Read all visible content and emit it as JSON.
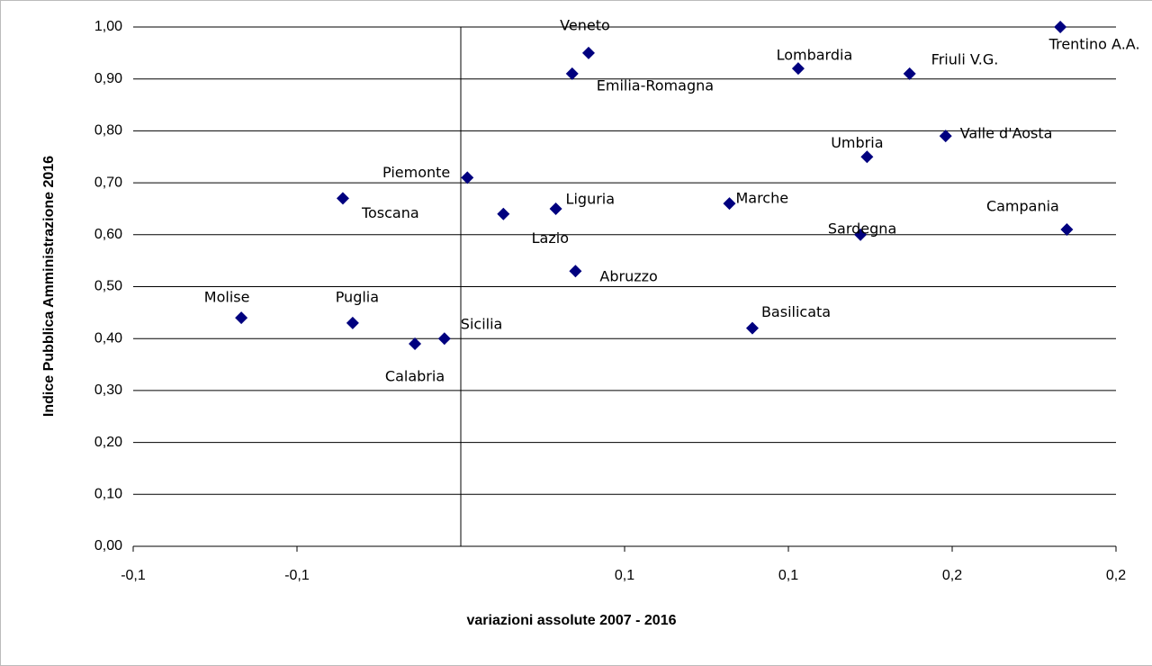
{
  "chart_data": {
    "type": "scatter",
    "xlabel": "variazioni assolute 2007 - 2016",
    "ylabel": "Indice Pubblica Amministrazione 2016",
    "labels": [
      "Molise",
      "Toscana",
      "Puglia",
      "Calabria",
      "Sicilia",
      "Piemonte",
      "Lazio",
      "Liguria",
      "Abruzzo",
      "Emilia-Romagna",
      "Veneto",
      "Marche",
      "Basilicata",
      "Lombardia",
      "Sardegna",
      "Umbria",
      "Friuli V.G.",
      "Valle d'Aosta",
      "Trentino A.A.",
      "Campania"
    ],
    "x": [
      -0.067,
      -0.036,
      -0.033,
      -0.014,
      -0.005,
      0.002,
      0.013,
      0.029,
      0.035,
      0.034,
      0.039,
      0.082,
      0.089,
      0.103,
      0.122,
      0.124,
      0.137,
      0.148,
      0.183,
      0.185
    ],
    "values": [
      0.44,
      0.67,
      0.43,
      0.39,
      0.4,
      0.71,
      0.64,
      0.65,
      0.53,
      0.91,
      0.95,
      0.66,
      0.42,
      0.92,
      0.6,
      0.75,
      0.91,
      0.79,
      1.0,
      0.61
    ],
    "color": "#00007f",
    "xlim": [
      -0.1,
      0.2
    ],
    "ylim": [
      0,
      1
    ],
    "y_axis_at": 0,
    "grid": true,
    "xticks": [
      {
        "value": -0.1,
        "label": "-0,1"
      },
      {
        "value": -0.05,
        "label": "-0,1"
      },
      {
        "value": 0.05,
        "label": "0,1"
      },
      {
        "value": 0.1,
        "label": "0,1"
      },
      {
        "value": 0.15,
        "label": "0,2"
      },
      {
        "value": 0.2,
        "label": "0,2"
      }
    ],
    "yticks": [
      {
        "value": 0,
        "label": "0,00"
      },
      {
        "value": 0.1,
        "label": "0,10"
      },
      {
        "value": 0.2,
        "label": "0,20"
      },
      {
        "value": 0.3,
        "label": "0,30"
      },
      {
        "value": 0.4,
        "label": "0,40"
      },
      {
        "value": 0.5,
        "label": "0,50"
      },
      {
        "value": 0.6,
        "label": "0,60"
      },
      {
        "value": 0.7,
        "label": "0,70"
      },
      {
        "value": 0.8,
        "label": "0,80"
      },
      {
        "value": 0.9,
        "label": "0,90"
      },
      {
        "value": 1,
        "label": "1,00"
      }
    ]
  }
}
